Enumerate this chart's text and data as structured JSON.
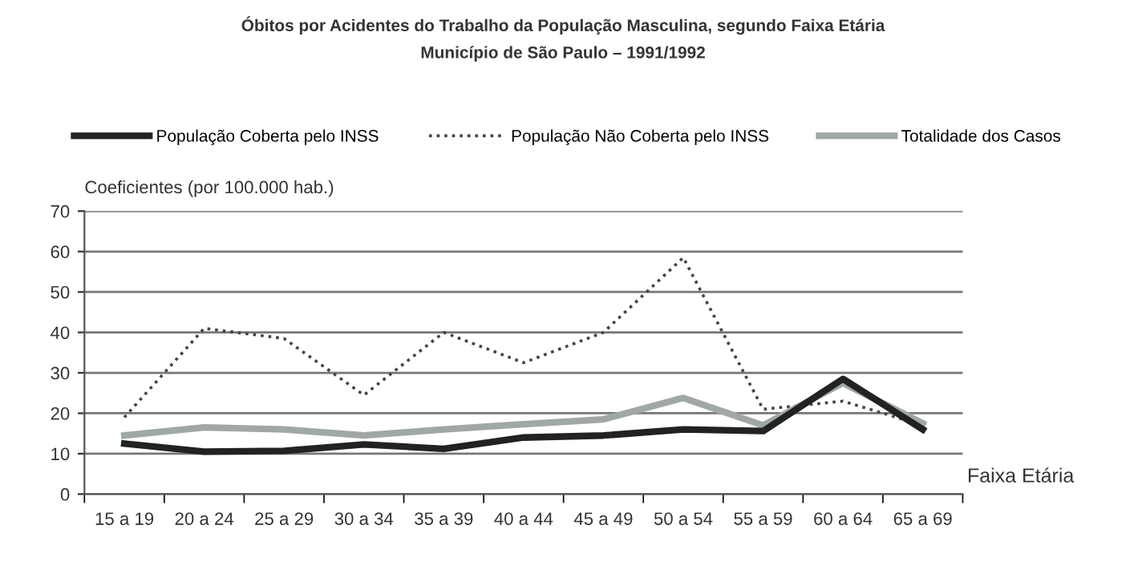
{
  "chart_data": {
    "type": "line",
    "title": "Óbitos por Acidentes do Trabalho da População Masculina, segundo Faixa Etária",
    "subtitle": "Município de São Paulo – 1991/1992",
    "xlabel": "Faixa Etária",
    "ylabel": "Coeficientes (por 100.000 hab.)",
    "categories": [
      "15 a 19",
      "20 a 24",
      "25 a 29",
      "30 a 34",
      "35 a 39",
      "40 a 44",
      "45 a 49",
      "50 a 54",
      "55 a 59",
      "60 a 64",
      "65 a 69"
    ],
    "series": [
      {
        "name": "População Coberta pelo INSS",
        "color": "#222222",
        "line_style": "solid",
        "values": [
          12.5,
          10.5,
          10.7,
          12.3,
          11.2,
          14,
          14.5,
          16,
          15.6,
          28.5,
          16
        ]
      },
      {
        "name": "População Não Coberta pelo INSS",
        "color": "#444444",
        "line_style": "dotted",
        "values": [
          19,
          41,
          38.5,
          24.5,
          40,
          32.5,
          40,
          58.5,
          21,
          23,
          17
        ]
      },
      {
        "name": "Totalidade dos Casos",
        "color": "#a0a8a6",
        "line_style": "solid",
        "values": [
          14.5,
          16.5,
          16,
          14.5,
          16,
          17.3,
          18.5,
          23.8,
          17,
          27.5,
          17.5
        ]
      }
    ],
    "ylim": [
      0,
      70
    ],
    "yticks": [
      0,
      10,
      20,
      30,
      40,
      50,
      60,
      70
    ],
    "grid": "y",
    "legend": "top",
    "marker": "none"
  }
}
